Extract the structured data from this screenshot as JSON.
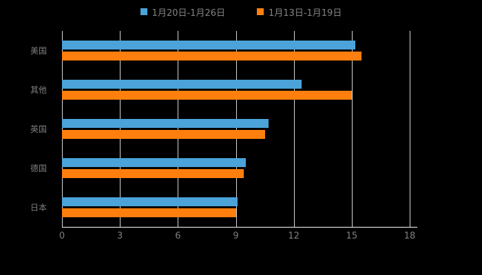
{
  "chart_data": {
    "type": "bar",
    "orientation": "horizontal",
    "title": "",
    "categories": [
      "美国",
      "其他",
      "英国",
      "德国",
      "日本"
    ],
    "series": [
      {
        "name": "1月20日-1月26日",
        "color": "#4BA3DA",
        "values": [
          15.2,
          12.4,
          10.7,
          9.5,
          9.1
        ]
      },
      {
        "name": "1月13日-1月19日",
        "color": "#FF7F0E",
        "values": [
          15.5,
          15.0,
          10.5,
          9.4,
          9.0
        ]
      }
    ],
    "xlim": [
      0,
      18
    ],
    "xticks": [
      0,
      3,
      6,
      9,
      12,
      15,
      18
    ],
    "grid": true,
    "legend_position": "top",
    "background_color": "#000000",
    "text_color": "#7f7f7f",
    "grid_color": "#ffffff"
  }
}
